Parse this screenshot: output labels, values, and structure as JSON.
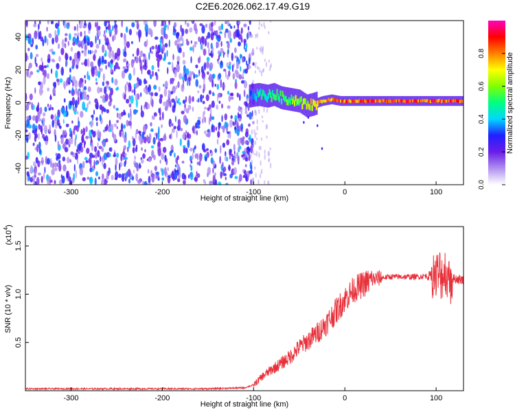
{
  "title": "C2E6.2026.062.17.49.G19",
  "colors": {
    "line": "#e8303a",
    "axis": "#000000",
    "colormap": [
      "#ffffff",
      "#b090f0",
      "#6a1de8",
      "#2020ff",
      "#00d7ff",
      "#00ff80",
      "#80ff00",
      "#ffff00",
      "#ff8000",
      "#ff0000",
      "#ff00c0"
    ]
  },
  "chart_data": [
    {
      "type": "heatmap",
      "name": "spectrogram",
      "xlabel": "Height of straight line (km)",
      "ylabel": "Frequency (Hz)",
      "xlim": [
        -350,
        130
      ],
      "ylim": [
        -50,
        50
      ],
      "xticks": [
        -300,
        -200,
        -100,
        0,
        100
      ],
      "yticks": [
        -40,
        -20,
        0,
        20,
        40
      ],
      "xtick_labels": [
        "-300",
        "-200",
        "-100",
        "0",
        "100"
      ],
      "ytick_labels": [
        "-40",
        "-20",
        "0",
        "20",
        "40"
      ],
      "noise_region_km": [
        -350,
        -103
      ],
      "carrier_track": {
        "x": [
          -105,
          -95,
          -85,
          -78,
          -70,
          -60,
          -50,
          -42,
          -35,
          -25,
          -15,
          -5,
          0,
          20,
          40,
          60,
          80,
          100,
          115,
          130
        ],
        "y": [
          4,
          5,
          4,
          5,
          3,
          2,
          1,
          -2,
          -1,
          1,
          2,
          1,
          1,
          1,
          1,
          1,
          1,
          1,
          1,
          1
        ],
        "amplitude": [
          0.35,
          0.5,
          0.55,
          0.6,
          0.6,
          0.65,
          0.7,
          0.75,
          0.8,
          0.85,
          0.88,
          0.9,
          0.92,
          0.93,
          0.94,
          0.94,
          0.95,
          0.96,
          0.96,
          0.95
        ]
      },
      "colorbar": {
        "label": "Normalized spectral amplitude",
        "range": [
          0,
          1
        ],
        "ticks": [
          0.0,
          0.2,
          0.4,
          0.6,
          0.8
        ],
        "tick_labels": [
          "0.0",
          "0.2",
          "0.4",
          "0.6",
          "0.8"
        ]
      }
    },
    {
      "type": "line",
      "name": "snr",
      "xlabel": "Height of straight line (km)",
      "ylabel": "SNR (10 * v/v)",
      "scale_label": "(x10",
      "scale_exp": "4",
      "xlim": [
        -350,
        130
      ],
      "ylim": [
        0,
        1.7
      ],
      "xticks": [
        -300,
        -200,
        -100,
        0,
        100
      ],
      "yticks": [
        0.5,
        1.0,
        1.5
      ],
      "xtick_labels": [
        "-300",
        "-200",
        "-100",
        "0",
        "100"
      ],
      "ytick_labels": [
        "0.5",
        "1.0",
        "1.5"
      ],
      "series": [
        {
          "name": "SNR",
          "x": [
            -350,
            -300,
            -250,
            -200,
            -150,
            -110,
            -100,
            -90,
            -80,
            -70,
            -60,
            -50,
            -40,
            -30,
            -20,
            -10,
            0,
            10,
            20,
            30,
            40,
            50,
            60,
            70,
            80,
            90,
            100,
            105,
            110,
            115,
            120,
            130
          ],
          "y": [
            0.02,
            0.02,
            0.02,
            0.02,
            0.02,
            0.03,
            0.06,
            0.15,
            0.22,
            0.28,
            0.35,
            0.45,
            0.52,
            0.6,
            0.7,
            0.82,
            0.95,
            1.05,
            1.1,
            1.15,
            1.17,
            1.18,
            1.18,
            1.18,
            1.18,
            1.19,
            1.19,
            1.2,
            1.2,
            1.18,
            1.16,
            1.15
          ]
        }
      ]
    }
  ]
}
